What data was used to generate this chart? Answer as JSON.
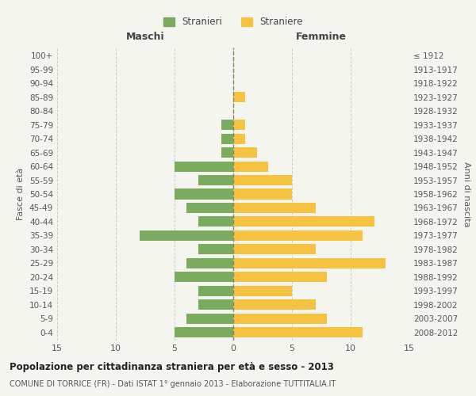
{
  "age_groups": [
    "0-4",
    "5-9",
    "10-14",
    "15-19",
    "20-24",
    "25-29",
    "30-34",
    "35-39",
    "40-44",
    "45-49",
    "50-54",
    "55-59",
    "60-64",
    "65-69",
    "70-74",
    "75-79",
    "80-84",
    "85-89",
    "90-94",
    "95-99",
    "100+"
  ],
  "birth_years": [
    "2008-2012",
    "2003-2007",
    "1998-2002",
    "1993-1997",
    "1988-1992",
    "1983-1987",
    "1978-1982",
    "1973-1977",
    "1968-1972",
    "1963-1967",
    "1958-1962",
    "1953-1957",
    "1948-1952",
    "1943-1947",
    "1938-1942",
    "1933-1937",
    "1928-1932",
    "1923-1927",
    "1918-1922",
    "1913-1917",
    "≤ 1912"
  ],
  "maschi": [
    5,
    4,
    3,
    3,
    5,
    4,
    3,
    8,
    3,
    4,
    5,
    3,
    5,
    1,
    1,
    1,
    0,
    0,
    0,
    0,
    0
  ],
  "femmine": [
    11,
    8,
    7,
    5,
    8,
    13,
    7,
    11,
    12,
    7,
    5,
    5,
    3,
    2,
    1,
    1,
    0,
    1,
    0,
    0,
    0
  ],
  "maschi_color": "#7aab5e",
  "femmine_color": "#f5c242",
  "background_color": "#f5f5f0",
  "grid_color": "#cccccc",
  "title": "Popolazione per cittadinanza straniera per età e sesso - 2013",
  "subtitle": "COMUNE DI TORRICE (FR) - Dati ISTAT 1° gennaio 2013 - Elaborazione TUTTITALIA.IT",
  "xlabel_left": "Maschi",
  "xlabel_right": "Femmine",
  "ylabel_left": "Fasce di età",
  "ylabel_right": "Anni di nascita",
  "legend_stranieri": "Stranieri",
  "legend_straniere": "Straniere",
  "xlim": 15
}
